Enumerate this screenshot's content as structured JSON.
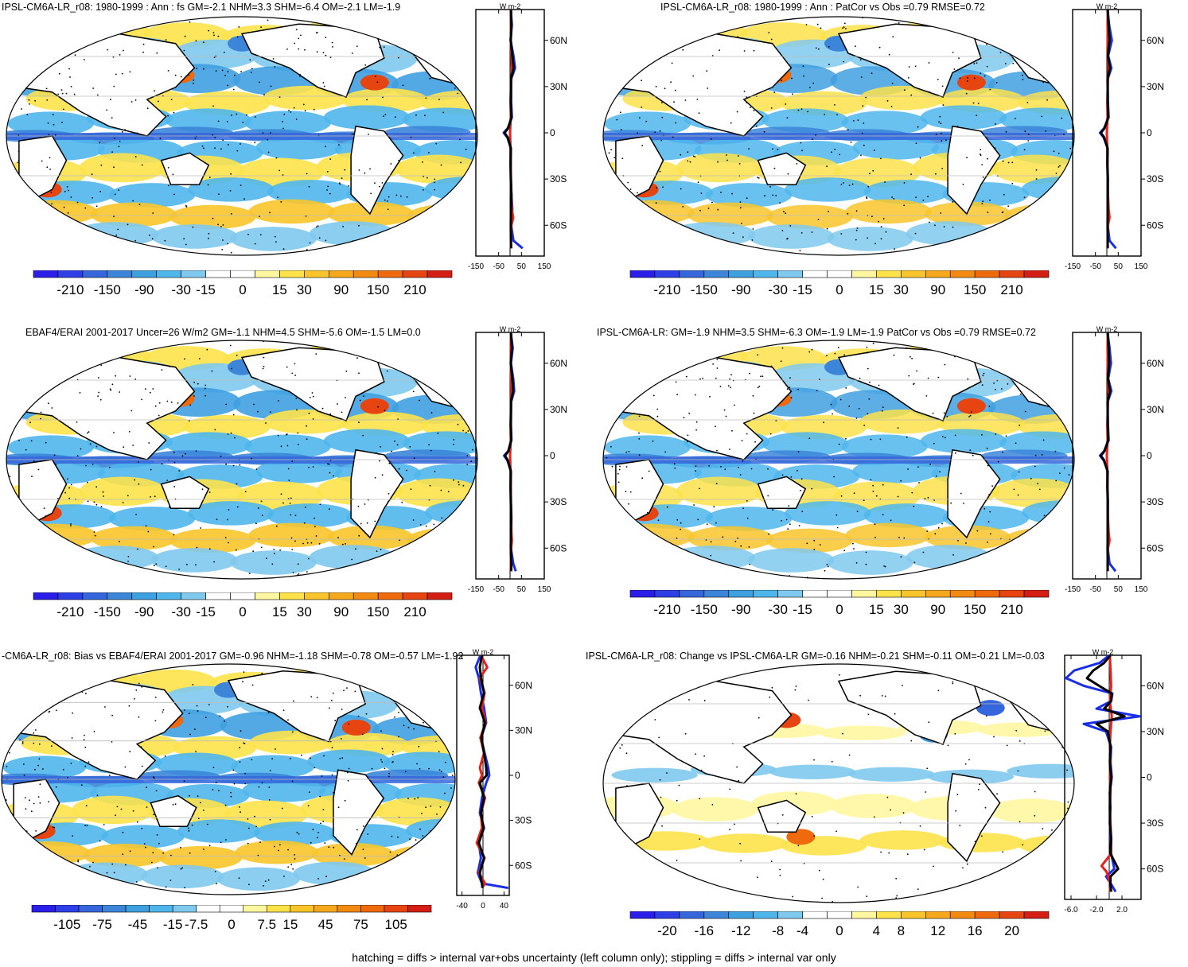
{
  "footer_note": "hatching = diffs > internal var+obs uncertainty (left column only); stippling = diffs > internal var only",
  "palette": [
    "#2b1ee8",
    "#2f3fe8",
    "#3566dc",
    "#3c85d8",
    "#3fa0e0",
    "#4fb6ec",
    "#80c9ee",
    "#ffffff",
    "#ffffff",
    "#fff6a0",
    "#fde24a",
    "#f9c52a",
    "#f5a81c",
    "#f28a12",
    "#ee6a0c",
    "#e64410",
    "#d41e14"
  ],
  "chart_data": [
    {
      "type": "map-with-zonal-profile",
      "title": "IPSL-CM6A-LR_r08: 1980-1999 : Ann : fs GM=-2.1 NHM=3.3 SHM=-6.4 OM=-2.1 LM=-1.9",
      "colorbar_labels": [
        "-210",
        "-150",
        "-90",
        "-30",
        "-15",
        "0",
        "15",
        "30",
        "90",
        "150",
        "210"
      ],
      "profile": {
        "unit_label": "W m-2",
        "lat_labels": [
          "60N",
          "30N",
          "0",
          "30S",
          "60S"
        ],
        "xlim": [
          -150,
          150
        ],
        "x_ticks": [
          "-150",
          "-50",
          "50",
          "150"
        ],
        "series": [
          {
            "name": "blue",
            "color": "#1a2ee8",
            "lat": [
              80,
              70,
              60,
              50,
              42,
              35,
              20,
              10,
              3,
              0,
              -3,
              -10,
              -20,
              -30,
              -40,
              -50,
              -60,
              -70,
              -75
            ],
            "values": [
              3,
              8,
              2,
              15,
              22,
              5,
              5,
              8,
              -10,
              -28,
              -12,
              4,
              3,
              4,
              6,
              10,
              5,
              15,
              55
            ]
          },
          {
            "name": "red",
            "color": "#e8201a",
            "lat": [
              80,
              70,
              60,
              50,
              40,
              30,
              20,
              10,
              0,
              -10,
              -20,
              -30,
              -40,
              -50,
              -55,
              -60,
              -70,
              -75
            ],
            "values": [
              5,
              4,
              3,
              6,
              8,
              4,
              2,
              3,
              0,
              2,
              3,
              4,
              5,
              8,
              14,
              6,
              4,
              3
            ]
          },
          {
            "name": "black",
            "color": "#000000",
            "lat": [
              80,
              70,
              60,
              50,
              42,
              35,
              20,
              10,
              3,
              0,
              -3,
              -10,
              -20,
              -30,
              -40,
              -50,
              -60,
              -70,
              -75
            ],
            "values": [
              4,
              6,
              3,
              10,
              16,
              4,
              3,
              6,
              -8,
              -24,
              -10,
              3,
              2,
              3,
              6,
              4,
              3,
              4,
              5
            ]
          }
        ]
      }
    },
    {
      "type": "map-with-zonal-profile",
      "title": "IPSL-CM6A-LR_r08: 1980-1999 : Ann : PatCor vs Obs =0.79 RMSE=0.72",
      "colorbar_labels": [
        "-210",
        "-150",
        "-90",
        "-30",
        "-15",
        "0",
        "15",
        "30",
        "90",
        "150",
        "210"
      ],
      "profile": {
        "unit_label": "W m-2",
        "lat_labels": [
          "60N",
          "30N",
          "0",
          "30S",
          "60S"
        ],
        "xlim": [
          -150,
          150
        ],
        "x_ticks": [
          "-150",
          "-50",
          "50",
          "150"
        ],
        "series": [
          {
            "name": "blue",
            "color": "#1a2ee8",
            "lat": [
              80,
              70,
              60,
              50,
              42,
              35,
              20,
              10,
              3,
              0,
              -3,
              -10,
              -20,
              -30,
              -40,
              -50,
              -60,
              -70,
              -75
            ],
            "values": [
              3,
              10,
              22,
              6,
              20,
              4,
              5,
              8,
              -12,
              -30,
              -14,
              4,
              3,
              5,
              4,
              6,
              4,
              12,
              40
            ]
          },
          {
            "name": "red",
            "color": "#e8201a",
            "lat": [
              80,
              70,
              60,
              50,
              40,
              30,
              20,
              10,
              0,
              -10,
              -20,
              -30,
              -40,
              -50,
              -55,
              -60,
              -70,
              -75
            ],
            "values": [
              4,
              3,
              4,
              5,
              7,
              4,
              2,
              3,
              0,
              2,
              3,
              4,
              5,
              8,
              12,
              5,
              3,
              3
            ]
          },
          {
            "name": "black",
            "color": "#000000",
            "lat": [
              80,
              70,
              60,
              50,
              42,
              35,
              20,
              10,
              3,
              0,
              -3,
              -10,
              -20,
              -30,
              -40,
              -50,
              -60,
              -70,
              -75
            ],
            "values": [
              4,
              8,
              12,
              5,
              14,
              3,
              4,
              6,
              -10,
              -26,
              -12,
              3,
              2,
              4,
              4,
              4,
              3,
              4,
              4
            ]
          }
        ]
      }
    },
    {
      "type": "map-with-zonal-profile",
      "title": "EBAF4/ERAI 2001-2017 Uncer=26 W/m2 GM=-1.1 NHM=4.5 SHM=-5.6 OM=-1.5 LM=0.0",
      "colorbar_labels": [
        "-210",
        "-150",
        "-90",
        "-30",
        "-15",
        "0",
        "15",
        "30",
        "90",
        "150",
        "210"
      ],
      "profile": {
        "unit_label": "W m-2",
        "lat_labels": [
          "60N",
          "30N",
          "0",
          "30S",
          "60S"
        ],
        "xlim": [
          -150,
          150
        ],
        "x_ticks": [
          "-150",
          "-50",
          "50",
          "150"
        ],
        "series": [
          {
            "name": "blue",
            "color": "#1a2ee8",
            "lat": [
              80,
              70,
              60,
              50,
              42,
              35,
              20,
              10,
              3,
              0,
              -3,
              -10,
              -20,
              -30,
              -40,
              -50,
              -60,
              -70,
              -75
            ],
            "values": [
              3,
              12,
              4,
              14,
              18,
              5,
              4,
              6,
              -8,
              -26,
              -12,
              4,
              3,
              4,
              6,
              5,
              4,
              14,
              25
            ]
          },
          {
            "name": "red",
            "color": "#e8201a",
            "lat": [
              80,
              70,
              60,
              50,
              40,
              30,
              20,
              10,
              0,
              -10,
              -20,
              -30,
              -40,
              -50,
              -55,
              -60,
              -70,
              -75
            ],
            "values": [
              4,
              3,
              3,
              5,
              6,
              4,
              2,
              3,
              0,
              2,
              3,
              4,
              5,
              6,
              8,
              5,
              3,
              3
            ]
          },
          {
            "name": "black",
            "color": "#000000",
            "lat": [
              80,
              70,
              60,
              50,
              42,
              35,
              20,
              10,
              3,
              0,
              -3,
              -10,
              -20,
              -30,
              -40,
              -50,
              -60,
              -70,
              -75
            ],
            "values": [
              4,
              8,
              3,
              10,
              14,
              4,
              3,
              5,
              -7,
              -22,
              -10,
              3,
              2,
              3,
              5,
              4,
              3,
              6,
              5
            ]
          }
        ]
      }
    },
    {
      "type": "map-with-zonal-profile",
      "title": "IPSL-CM6A-LR: GM=-1.9 NHM=3.5 SHM=-6.3 OM=-1.9 LM=-1.9 PatCor vs Obs =0.79 RMSE=0.72",
      "colorbar_labels": [
        "-210",
        "-150",
        "-90",
        "-30",
        "-15",
        "0",
        "15",
        "30",
        "90",
        "150",
        "210"
      ],
      "profile": {
        "unit_label": "W m-2",
        "lat_labels": [
          "60N",
          "30N",
          "0",
          "30S",
          "60S"
        ],
        "xlim": [
          -150,
          150
        ],
        "x_ticks": [
          "-150",
          "-50",
          "50",
          "150"
        ],
        "series": [
          {
            "name": "blue",
            "color": "#1a2ee8",
            "lat": [
              80,
              70,
              60,
              50,
              42,
              35,
              20,
              10,
              3,
              0,
              -3,
              -10,
              -20,
              -30,
              -40,
              -50,
              -60,
              -70,
              -75
            ],
            "values": [
              3,
              12,
              18,
              6,
              20,
              4,
              5,
              8,
              -12,
              -30,
              -14,
              4,
              3,
              5,
              4,
              6,
              4,
              12,
              38
            ]
          },
          {
            "name": "red",
            "color": "#e8201a",
            "lat": [
              80,
              70,
              60,
              50,
              40,
              30,
              20,
              10,
              0,
              -10,
              -20,
              -30,
              -40,
              -50,
              -55,
              -60,
              -70,
              -75
            ],
            "values": [
              4,
              3,
              4,
              5,
              7,
              4,
              2,
              3,
              0,
              2,
              3,
              4,
              5,
              8,
              12,
              5,
              3,
              3
            ]
          },
          {
            "name": "black",
            "color": "#000000",
            "lat": [
              80,
              70,
              60,
              50,
              42,
              35,
              20,
              10,
              3,
              0,
              -3,
              -10,
              -20,
              -30,
              -40,
              -50,
              -60,
              -70,
              -75
            ],
            "values": [
              4,
              8,
              10,
              5,
              14,
              3,
              4,
              6,
              -10,
              -26,
              -12,
              3,
              2,
              4,
              4,
              4,
              3,
              4,
              4
            ]
          }
        ]
      }
    },
    {
      "type": "map-with-zonal-profile",
      "title": "-CM6A-LR_r08: Bias vs EBAF4/ERAI 2001-2017 GM=-0.96 NHM=-1.18 SHM=-0.78 OM=-0.57 LM=-1.92",
      "colorbar_labels": [
        "-105",
        "-75",
        "-45",
        "-15",
        "-7.5",
        "0",
        "7.5",
        "15",
        "45",
        "75",
        "105"
      ],
      "profile": {
        "unit_label": "W m-2",
        "lat_labels": [
          "60N",
          "30N",
          "0",
          "30S",
          "60S"
        ],
        "xlim": [
          -50,
          50
        ],
        "x_ticks": [
          "-40",
          "0",
          "40"
        ],
        "series": [
          {
            "name": "blue",
            "color": "#1a2ee8",
            "lat": [
              80,
              72,
              65,
              55,
              45,
              35,
              25,
              15,
              5,
              0,
              -5,
              -15,
              -25,
              -35,
              -45,
              -55,
              -65,
              -72,
              -75
            ],
            "values": [
              -5,
              -14,
              -8,
              -4,
              2,
              6,
              -4,
              3,
              10,
              12,
              6,
              -2,
              -6,
              2,
              -8,
              -4,
              -10,
              -2,
              48
            ]
          },
          {
            "name": "red",
            "color": "#e8201a",
            "lat": [
              80,
              72,
              65,
              55,
              45,
              35,
              25,
              15,
              5,
              0,
              -5,
              -15,
              -25,
              -35,
              -45,
              -55,
              -65,
              -72,
              -75
            ],
            "values": [
              -4,
              8,
              -6,
              3,
              -2,
              5,
              -5,
              2,
              -6,
              -2,
              -8,
              4,
              -4,
              -2,
              -12,
              3,
              -8,
              4,
              -2
            ]
          },
          {
            "name": "black",
            "color": "#000000",
            "lat": [
              80,
              72,
              65,
              55,
              45,
              35,
              25,
              15,
              5,
              0,
              -5,
              -15,
              -25,
              -35,
              -45,
              -55,
              -65,
              -72,
              -75
            ],
            "values": [
              -2,
              -6,
              -4,
              2,
              -6,
              4,
              -3,
              2,
              6,
              7,
              -6,
              2,
              -4,
              1,
              -8,
              2,
              -6,
              -2,
              -1
            ]
          }
        ]
      }
    },
    {
      "type": "map-with-zonal-profile",
      "title": "IPSL-CM6A-LR_r08: Change vs IPSL-CM6A-LR GM=-0.16 NHM=-0.21 SHM=-0.11 OM=-0.21 LM=-0.03",
      "colorbar_labels": [
        "-20",
        "-16",
        "-12",
        "-8",
        "-4",
        "0",
        "4",
        "8",
        "12",
        "16",
        "20"
      ],
      "profile": {
        "unit_label": "W m-2",
        "lat_labels": [
          "60N",
          "30N",
          "0",
          "30S",
          "60S"
        ],
        "xlim": [
          -7,
          5
        ],
        "x_ticks": [
          "-6.0",
          "-2.0",
          "2.0"
        ],
        "series": [
          {
            "name": "blue",
            "color": "#1a2ee8",
            "lat": [
              80,
              75,
              70,
              65,
              60,
              55,
              50,
              45,
              40,
              35,
              30,
              20,
              10,
              0,
              -10,
              -20,
              -30,
              -40,
              -50,
              -60,
              -65,
              -70,
              -75
            ],
            "values": [
              0,
              -1.5,
              -5.5,
              -6.8,
              -4,
              0.5,
              0.3,
              -2,
              4.8,
              -4,
              -0.5,
              0.3,
              0.2,
              0.4,
              0.1,
              0.2,
              0.1,
              0.2,
              0.3,
              0.8,
              -0.5,
              0.3,
              1.0
            ]
          },
          {
            "name": "red",
            "color": "#e8201a",
            "lat": [
              80,
              70,
              60,
              50,
              40,
              30,
              20,
              10,
              0,
              -10,
              -20,
              -30,
              -40,
              -50,
              -58,
              -62,
              -70,
              -75
            ],
            "values": [
              0.1,
              0.2,
              0.3,
              0.1,
              0.4,
              0.2,
              0.1,
              0.2,
              0.1,
              0.2,
              0.1,
              0.2,
              0.3,
              0.3,
              -1.2,
              -0.4,
              0.2,
              0.1
            ]
          },
          {
            "name": "black",
            "color": "#000000",
            "lat": [
              80,
              75,
              70,
              65,
              60,
              55,
              50,
              45,
              40,
              35,
              30,
              20,
              10,
              0,
              -10,
              -20,
              -30,
              -40,
              -50,
              -60,
              -65,
              -70,
              -75
            ],
            "values": [
              0.2,
              -0.8,
              -2.5,
              -3.5,
              -1.6,
              0.4,
              0.3,
              -0.8,
              2.4,
              -2,
              -0.2,
              0.2,
              0.1,
              0.3,
              0.1,
              0.1,
              0.1,
              0.3,
              0.2,
              1.4,
              0.2,
              0.2,
              0.3
            ]
          }
        ]
      }
    }
  ]
}
